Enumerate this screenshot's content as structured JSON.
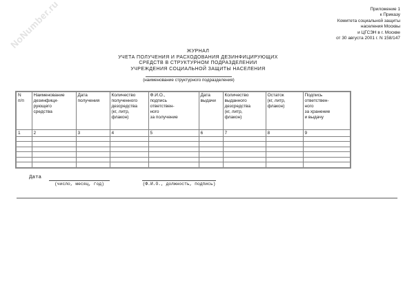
{
  "watermark": "NoNumber.ru",
  "header_right": {
    "lines": [
      "Приложение 1",
      "к Приказу",
      "Комитета социальной защиты",
      "населения Москвы",
      "и ЦГСЭН в г. Москве",
      "от 30 августа 2001 г. N 158/147"
    ]
  },
  "title": {
    "lines": [
      "ЖУРНАЛ",
      "УЧЕТА ПОЛУЧЕНИЯ И РАСХОДОВАНИЯ ДЕЗИНФИЦИРУЮЩИХ",
      "СРЕДСТВ В СТРУКТУРНОМ ПОДРАЗДЕЛЕНИИ",
      "УЧРЕЖДЕНИЯ СОЦИАЛЬНОЙ ЗАЩИТЫ НАСЕЛЕНИЯ"
    ],
    "subtitle_caption": "(наименование структурного подразделения)"
  },
  "table": {
    "columns": [
      {
        "header": "N\nп/п",
        "number": "1"
      },
      {
        "header": "Наименование\nдезинфици-\nрующего\nсредства",
        "number": "2"
      },
      {
        "header": "Дата\nполучения",
        "number": "3"
      },
      {
        "header": "Количество\nполученного\nдезсредства\n(кг, литр,\nфлакон)",
        "number": "4"
      },
      {
        "header": "Ф.И.О.,\nподпись\nответствен-\nного\nза получение",
        "number": "5"
      },
      {
        "header": "Дата\nвыдачи",
        "number": "6"
      },
      {
        "header": "Количество\nвыданного\nдезсредства\n(кг, литр,\nфлакон)",
        "number": "7"
      },
      {
        "header": "Остаток\n(кг, литр,\nфлакон)",
        "number": "8"
      },
      {
        "header": "Подпись\nответствен-\nного\nза хранение\nи выдачу",
        "number": "9"
      }
    ],
    "empty_row_count": 6
  },
  "footer": {
    "date_label": "Дата",
    "date_caption": "(число, месяц, год)",
    "sign_caption": "(Ф.И.О., должность, подпись)"
  },
  "colors": {
    "table_border": "#7e7e7e",
    "watermark_gray": "#e2e2e2",
    "bottom_rule_gray": "#a8a8a8"
  }
}
